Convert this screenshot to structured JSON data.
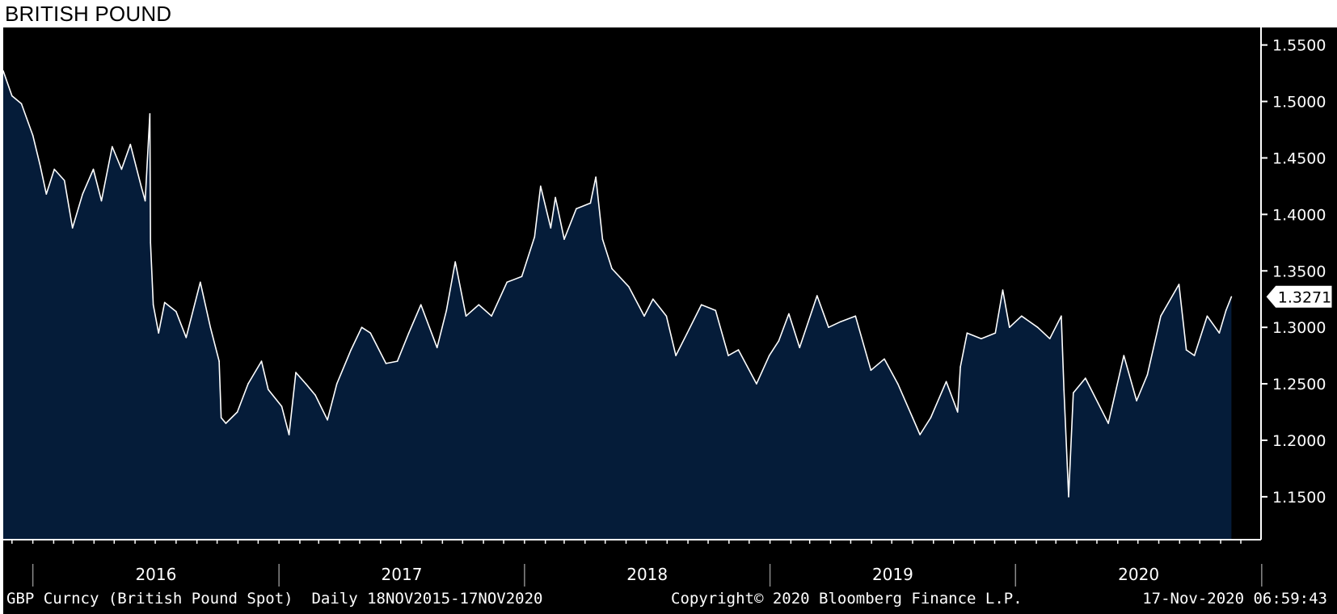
{
  "title": "BRITISH POUND",
  "footer": {
    "left": "GBP Curncy (British Pound Spot)  Daily 18NOV2015-17NOV2020",
    "center": "Copyright© 2020 Bloomberg Finance L.P.",
    "right": "17-Nov-2020 06:59:43"
  },
  "colors": {
    "background": "#000000",
    "area_fill": "#051c39",
    "line": "#ffffff",
    "axis": "#ffffff",
    "title_band": "#ffffff"
  },
  "chart_data": {
    "type": "area",
    "title": "BRITISH POUND",
    "series": [
      {
        "name": "GBP Curncy (British Pound Spot)",
        "frequency": "Daily",
        "range": "18NOV2015-17NOV2020",
        "points": [
          [
            "2015-11-18",
            1.527
          ],
          [
            "2015-12-01",
            1.505
          ],
          [
            "2015-12-15",
            1.498
          ],
          [
            "2016-01-01",
            1.47
          ],
          [
            "2016-01-12",
            1.443
          ],
          [
            "2016-01-21",
            1.418
          ],
          [
            "2016-02-02",
            1.44
          ],
          [
            "2016-02-17",
            1.43
          ],
          [
            "2016-02-29",
            1.388
          ],
          [
            "2016-03-15",
            1.418
          ],
          [
            "2016-03-31",
            1.44
          ],
          [
            "2016-04-12",
            1.412
          ],
          [
            "2016-04-28",
            1.46
          ],
          [
            "2016-05-12",
            1.44
          ],
          [
            "2016-05-25",
            1.462
          ],
          [
            "2016-06-10",
            1.425
          ],
          [
            "2016-06-16",
            1.412
          ],
          [
            "2016-06-23",
            1.489
          ],
          [
            "2016-06-24",
            1.375
          ],
          [
            "2016-06-28",
            1.32
          ],
          [
            "2016-07-06",
            1.295
          ],
          [
            "2016-07-15",
            1.322
          ],
          [
            "2016-08-01",
            1.314
          ],
          [
            "2016-08-16",
            1.291
          ],
          [
            "2016-09-06",
            1.34
          ],
          [
            "2016-09-21",
            1.3
          ],
          [
            "2016-10-04",
            1.27
          ],
          [
            "2016-10-07",
            1.22
          ],
          [
            "2016-10-14",
            1.215
          ],
          [
            "2016-10-31",
            1.225
          ],
          [
            "2016-11-16",
            1.25
          ],
          [
            "2016-12-06",
            1.27
          ],
          [
            "2016-12-16",
            1.245
          ],
          [
            "2017-01-05",
            1.23
          ],
          [
            "2017-01-16",
            1.205
          ],
          [
            "2017-01-26",
            1.26
          ],
          [
            "2017-02-10",
            1.25
          ],
          [
            "2017-02-24",
            1.24
          ],
          [
            "2017-03-14",
            1.218
          ],
          [
            "2017-03-28",
            1.25
          ],
          [
            "2017-04-18",
            1.28
          ],
          [
            "2017-05-04",
            1.3
          ],
          [
            "2017-05-17",
            1.295
          ],
          [
            "2017-06-09",
            1.268
          ],
          [
            "2017-06-26",
            1.27
          ],
          [
            "2017-07-13",
            1.295
          ],
          [
            "2017-07-31",
            1.32
          ],
          [
            "2017-08-24",
            1.282
          ],
          [
            "2017-09-07",
            1.315
          ],
          [
            "2017-09-20",
            1.358
          ],
          [
            "2017-10-06",
            1.31
          ],
          [
            "2017-10-25",
            1.32
          ],
          [
            "2017-11-13",
            1.31
          ],
          [
            "2017-12-06",
            1.34
          ],
          [
            "2017-12-28",
            1.345
          ],
          [
            "2018-01-16",
            1.38
          ],
          [
            "2018-01-25",
            1.425
          ],
          [
            "2018-02-09",
            1.388
          ],
          [
            "2018-02-16",
            1.415
          ],
          [
            "2018-03-01",
            1.378
          ],
          [
            "2018-03-19",
            1.405
          ],
          [
            "2018-04-09",
            1.41
          ],
          [
            "2018-04-17",
            1.433
          ],
          [
            "2018-04-27",
            1.378
          ],
          [
            "2018-05-11",
            1.352
          ],
          [
            "2018-06-05",
            1.336
          ],
          [
            "2018-06-28",
            1.31
          ],
          [
            "2018-07-11",
            1.325
          ],
          [
            "2018-07-31",
            1.31
          ],
          [
            "2018-08-14",
            1.275
          ],
          [
            "2018-08-31",
            1.295
          ],
          [
            "2018-09-21",
            1.32
          ],
          [
            "2018-10-12",
            1.315
          ],
          [
            "2018-10-31",
            1.275
          ],
          [
            "2018-11-15",
            1.28
          ],
          [
            "2018-12-12",
            1.25
          ],
          [
            "2018-12-31",
            1.275
          ],
          [
            "2019-01-14",
            1.288
          ],
          [
            "2019-01-29",
            1.312
          ],
          [
            "2019-02-14",
            1.282
          ],
          [
            "2019-03-12",
            1.328
          ],
          [
            "2019-03-29",
            1.3
          ],
          [
            "2019-04-16",
            1.305
          ],
          [
            "2019-05-08",
            1.31
          ],
          [
            "2019-05-31",
            1.262
          ],
          [
            "2019-06-20",
            1.272
          ],
          [
            "2019-07-10",
            1.25
          ],
          [
            "2019-08-01",
            1.22
          ],
          [
            "2019-08-12",
            1.205
          ],
          [
            "2019-08-28",
            1.22
          ],
          [
            "2019-09-20",
            1.252
          ],
          [
            "2019-10-07",
            1.225
          ],
          [
            "2019-10-11",
            1.265
          ],
          [
            "2019-10-21",
            1.295
          ],
          [
            "2019-11-11",
            1.29
          ],
          [
            "2019-12-02",
            1.295
          ],
          [
            "2019-12-13",
            1.333
          ],
          [
            "2019-12-23",
            1.3
          ],
          [
            "2020-01-10",
            1.31
          ],
          [
            "2020-02-03",
            1.3
          ],
          [
            "2020-02-21",
            1.29
          ],
          [
            "2020-03-09",
            1.31
          ],
          [
            "2020-03-13",
            1.245
          ],
          [
            "2020-03-20",
            1.15
          ],
          [
            "2020-03-27",
            1.242
          ],
          [
            "2020-04-14",
            1.255
          ],
          [
            "2020-05-18",
            1.215
          ],
          [
            "2020-06-10",
            1.275
          ],
          [
            "2020-06-29",
            1.235
          ],
          [
            "2020-07-15",
            1.258
          ],
          [
            "2020-08-04",
            1.31
          ],
          [
            "2020-08-31",
            1.338
          ],
          [
            "2020-09-11",
            1.28
          ],
          [
            "2020-09-23",
            1.275
          ],
          [
            "2020-10-12",
            1.31
          ],
          [
            "2020-10-30",
            1.295
          ],
          [
            "2020-11-09",
            1.315
          ],
          [
            "2020-11-17",
            1.3271
          ]
        ],
        "last_value_label": "1.3271"
      }
    ],
    "x_tick_labels": [
      "2016",
      "2017",
      "2018",
      "2019",
      "2020"
    ],
    "y_tick_labels": [
      "1.1500",
      "1.2000",
      "1.2500",
      "1.3000",
      "1.3500",
      "1.4000",
      "1.4500",
      "1.5000",
      "1.5500"
    ],
    "xlim": [
      "2015-11-18",
      "2020-12-31"
    ],
    "ylim": [
      1.112,
      1.5655
    ],
    "grid": false,
    "legend": "none"
  }
}
